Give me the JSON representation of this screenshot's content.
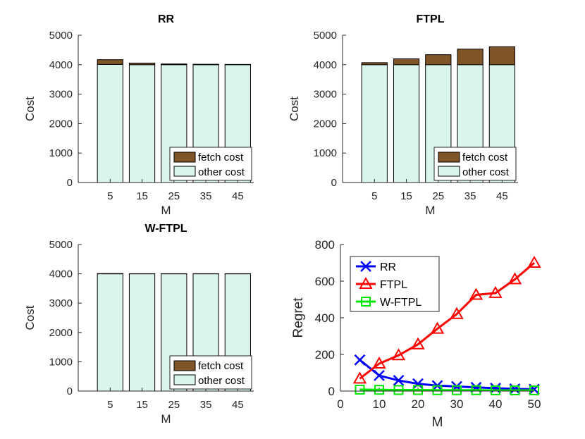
{
  "colors": {
    "fetch": "#7f5427",
    "other": "#d9f5ec",
    "rr": "#0000ff",
    "ftpl": "#ff0000",
    "wftpl": "#00e600"
  },
  "chart_data": [
    {
      "type": "bar",
      "stacked": true,
      "title": "RR",
      "xlabel": "M",
      "ylabel": "Cost",
      "categories": [
        "5",
        "15",
        "25",
        "35",
        "45"
      ],
      "ylim": [
        0,
        5000
      ],
      "yticks": [
        "0",
        "1000",
        "2000",
        "3000",
        "4000",
        "5000"
      ],
      "series": [
        {
          "name": "other cost",
          "color_key": "other",
          "values": [
            4010,
            4000,
            4000,
            4000,
            4000
          ]
        },
        {
          "name": "fetch cost",
          "color_key": "fetch",
          "values": [
            160,
            55,
            25,
            15,
            10
          ]
        }
      ],
      "legend": [
        "fetch cost",
        "other cost"
      ],
      "legend_position": "bottom-right"
    },
    {
      "type": "bar",
      "stacked": true,
      "title": "FTPL",
      "xlabel": "M",
      "ylabel": "Cost",
      "categories": [
        "5",
        "15",
        "25",
        "35",
        "45"
      ],
      "ylim": [
        0,
        5000
      ],
      "yticks": [
        "0",
        "1000",
        "2000",
        "3000",
        "4000",
        "5000"
      ],
      "series": [
        {
          "name": "other cost",
          "color_key": "other",
          "values": [
            4000,
            4000,
            4000,
            4000,
            4000
          ]
        },
        {
          "name": "fetch cost",
          "color_key": "fetch",
          "values": [
            70,
            200,
            340,
            530,
            610
          ]
        }
      ],
      "legend": [
        "fetch cost",
        "other cost"
      ],
      "legend_position": "bottom-right"
    },
    {
      "type": "bar",
      "stacked": true,
      "title": "W-FTPL",
      "xlabel": "M",
      "ylabel": "Cost",
      "categories": [
        "5",
        "15",
        "25",
        "35",
        "45"
      ],
      "ylim": [
        0,
        5000
      ],
      "yticks": [
        "0",
        "1000",
        "2000",
        "3000",
        "4000",
        "5000"
      ],
      "series": [
        {
          "name": "other cost",
          "color_key": "other",
          "values": [
            4000,
            4000,
            4000,
            4000,
            4000
          ]
        },
        {
          "name": "fetch cost",
          "color_key": "fetch",
          "values": [
            10,
            5,
            5,
            5,
            5
          ]
        }
      ],
      "legend": [
        "fetch cost",
        "other cost"
      ],
      "legend_position": "bottom-right"
    },
    {
      "type": "line",
      "title": "",
      "xlabel": "M",
      "ylabel": "Regret",
      "x": [
        5,
        10,
        15,
        20,
        25,
        30,
        35,
        40,
        45,
        50
      ],
      "xlim": [
        0,
        50
      ],
      "ylim": [
        0,
        800
      ],
      "xticks": [
        "0",
        "10",
        "20",
        "30",
        "40",
        "50"
      ],
      "yticks": [
        "0",
        "200",
        "400",
        "600",
        "800"
      ],
      "series": [
        {
          "name": "RR",
          "color_key": "rr",
          "marker": "x",
          "values": [
            170,
            85,
            58,
            40,
            30,
            25,
            20,
            16,
            12,
            10
          ]
        },
        {
          "name": "FTPL",
          "color_key": "ftpl",
          "marker": "triangle",
          "values": [
            68,
            150,
            195,
            255,
            340,
            420,
            525,
            535,
            610,
            700
          ]
        },
        {
          "name": "W-FTPL",
          "color_key": "wftpl",
          "marker": "square",
          "values": [
            8,
            7,
            6,
            6,
            5,
            5,
            5,
            4,
            4,
            4
          ]
        }
      ],
      "legend_position": "top-left"
    }
  ]
}
